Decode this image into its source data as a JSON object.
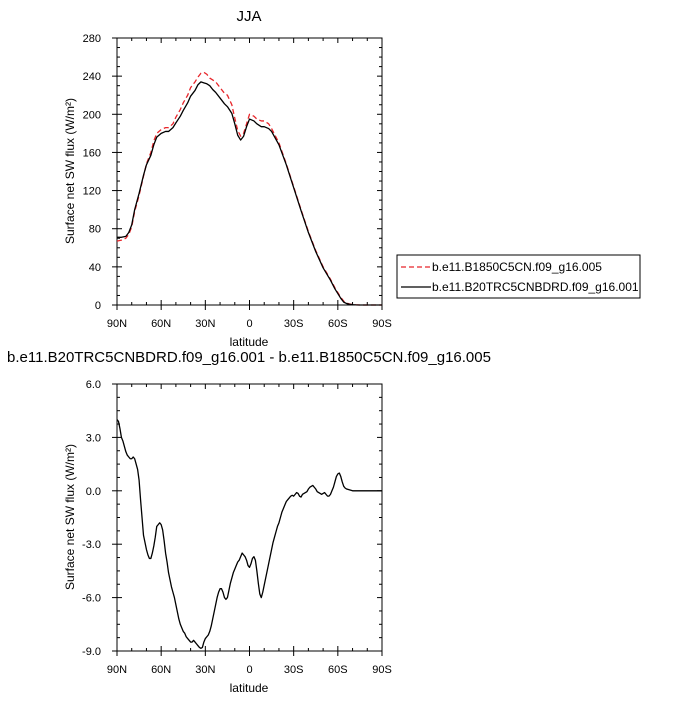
{
  "chart_data": [
    {
      "type": "line",
      "title": "JJA",
      "xlabel": "latitude",
      "ylabel": "Surface net SW flux (W/m²)",
      "xlim": [
        90,
        -90
      ],
      "ylim": [
        0,
        280
      ],
      "xtick_values": [
        90,
        60,
        30,
        0,
        -30,
        -60,
        -90
      ],
      "xtick_labels": [
        "90N",
        "60N",
        "30N",
        "0",
        "30S",
        "60S",
        "90S"
      ],
      "ytick_values": [
        0,
        40,
        80,
        120,
        160,
        200,
        240,
        280
      ],
      "ytick_labels": [
        "0",
        "40",
        "80",
        "120",
        "160",
        "200",
        "240",
        "280"
      ],
      "grid": false,
      "legend": {
        "position": "outside-right",
        "entries": [
          "b.e11.B1850C5CN.f09_g16.005",
          "b.e11.B20TRC5CNBDRD.f09_g16.001"
        ]
      },
      "series": [
        {
          "name": "b.e11.B1850C5CN.f09_g16.005",
          "color": "#e8252a",
          "dash": "dashed",
          "x": [
            90,
            87,
            84,
            82,
            80,
            78,
            75,
            72,
            70,
            67,
            65,
            63,
            60,
            57,
            55,
            52,
            50,
            47,
            45,
            42,
            40,
            37,
            35,
            33,
            31,
            29,
            27,
            25,
            23,
            20,
            17,
            15,
            12,
            10,
            8,
            6,
            4,
            2,
            0,
            -3,
            -5,
            -8,
            -10,
            -13,
            -15,
            -20,
            -25,
            -30,
            -35,
            -40,
            -45,
            -50,
            -55,
            -58,
            -60,
            -62,
            -64,
            -66,
            -68,
            -70,
            -72,
            -75,
            -80,
            -85,
            -90
          ],
          "y": [
            67,
            68,
            70,
            74,
            82,
            98,
            115,
            135,
            148,
            160,
            172,
            180,
            184,
            186,
            186,
            190,
            197,
            205,
            212,
            220,
            228,
            234,
            239,
            243,
            244,
            242,
            238,
            236,
            234,
            228,
            222,
            220,
            210,
            196,
            183,
            177,
            180,
            190,
            200,
            198,
            195,
            193,
            193,
            190,
            185,
            170,
            148,
            124,
            100,
            77,
            57,
            40,
            27,
            18,
            13,
            8,
            4,
            2,
            1,
            0.5,
            0.2,
            0,
            0,
            0,
            0
          ]
        },
        {
          "name": "b.e11.B20TRC5CNBDRD.f09_g16.001",
          "color": "#000000",
          "dash": "solid",
          "x": [
            90,
            87,
            84,
            82,
            80,
            78,
            75,
            72,
            70,
            67,
            65,
            63,
            60,
            57,
            55,
            52,
            50,
            47,
            45,
            42,
            40,
            37,
            35,
            33,
            31,
            29,
            27,
            25,
            23,
            20,
            17,
            15,
            12,
            10,
            8,
            6,
            4,
            2,
            0,
            -3,
            -5,
            -8,
            -10,
            -13,
            -15,
            -20,
            -25,
            -30,
            -35,
            -40,
            -45,
            -50,
            -55,
            -58,
            -60,
            -62,
            -64,
            -66,
            -68,
            -70,
            -72,
            -75,
            -80,
            -85,
            -90
          ],
          "y": [
            71,
            71,
            72,
            76,
            84,
            100,
            117,
            136,
            147,
            157,
            168,
            176,
            180,
            182,
            182,
            186,
            191,
            198,
            204,
            212,
            219,
            225,
            231,
            234,
            233,
            232,
            230,
            226,
            223,
            217,
            211,
            208,
            201,
            190,
            178,
            173,
            177,
            187,
            195,
            193,
            190,
            187,
            187,
            185,
            182,
            168,
            147,
            123,
            99,
            76,
            56,
            39,
            26,
            17,
            12,
            7,
            3,
            1.5,
            0.8,
            0.4,
            0.1,
            0,
            0,
            0,
            0
          ]
        }
      ]
    },
    {
      "type": "line",
      "title": "b.e11.B20TRC5CNBDRD.f09_g16.001 - b.e11.B1850C5CN.f09_g16.005",
      "xlabel": "latitude",
      "ylabel": "Surface net SW flux (W/m²)",
      "xlim": [
        90,
        -90
      ],
      "ylim": [
        -9,
        6
      ],
      "xtick_values": [
        90,
        60,
        30,
        0,
        -30,
        -60,
        -90
      ],
      "xtick_labels": [
        "90N",
        "60N",
        "30N",
        "0",
        "30S",
        "60S",
        "90S"
      ],
      "ytick_values": [
        -9,
        -6,
        -3,
        0,
        3,
        6
      ],
      "ytick_labels": [
        "-9.0",
        "-6.0",
        "-3.0",
        "0.0",
        "3.0",
        "6.0"
      ],
      "grid": false,
      "series": [
        {
          "color": "#000000",
          "dash": "solid",
          "x": [
            90,
            89,
            88,
            87,
            86,
            85,
            84,
            83,
            82,
            81,
            80,
            79,
            78,
            77,
            76,
            75,
            74,
            73,
            72,
            71,
            70,
            69,
            68,
            67,
            66,
            65,
            64,
            63,
            62,
            61,
            60,
            59,
            58,
            57,
            56,
            55,
            54,
            53,
            52,
            51,
            50,
            49,
            48,
            47,
            46,
            45,
            44,
            43,
            42,
            41,
            40,
            39,
            38,
            37,
            36,
            35,
            34,
            33,
            32,
            31,
            30,
            29,
            28,
            27,
            26,
            25,
            24,
            23,
            22,
            21,
            20,
            19,
            18,
            17,
            16,
            15,
            14,
            13,
            12,
            11,
            10,
            9,
            8,
            7,
            6,
            5,
            4,
            3,
            2,
            1,
            0,
            -1,
            -2,
            -3,
            -4,
            -5,
            -6,
            -7,
            -8,
            -9,
            -10,
            -11,
            -12,
            -13,
            -14,
            -15,
            -16,
            -17,
            -18,
            -19,
            -20,
            -21,
            -22,
            -23,
            -24,
            -25,
            -26,
            -27,
            -28,
            -29,
            -30,
            -31,
            -32,
            -33,
            -34,
            -35,
            -36,
            -37,
            -38,
            -39,
            -40,
            -41,
            -42,
            -43,
            -44,
            -45,
            -46,
            -47,
            -48,
            -49,
            -50,
            -51,
            -52,
            -53,
            -54,
            -55,
            -56,
            -57,
            -58,
            -59,
            -60,
            -61,
            -62,
            -63,
            -64,
            -65,
            -66,
            -68,
            -70,
            -75,
            -80,
            -85,
            -90
          ],
          "y": [
            4.0,
            3.9,
            3.5,
            3.0,
            2.8,
            2.5,
            2.2,
            2.0,
            1.9,
            1.8,
            1.8,
            1.9,
            1.8,
            1.5,
            1.2,
            0.6,
            -0.5,
            -1.5,
            -2.5,
            -2.9,
            -3.3,
            -3.6,
            -3.8,
            -3.8,
            -3.5,
            -3.1,
            -2.6,
            -2.0,
            -1.9,
            -1.8,
            -1.9,
            -2.2,
            -2.8,
            -3.5,
            -4.0,
            -4.6,
            -5.0,
            -5.4,
            -5.7,
            -6.0,
            -6.4,
            -6.8,
            -7.2,
            -7.5,
            -7.7,
            -7.9,
            -8.0,
            -8.2,
            -8.3,
            -8.4,
            -8.5,
            -8.5,
            -8.4,
            -8.5,
            -8.6,
            -8.7,
            -8.8,
            -8.85,
            -8.8,
            -8.5,
            -8.3,
            -8.2,
            -8.1,
            -7.9,
            -7.6,
            -7.2,
            -6.8,
            -6.4,
            -6.0,
            -5.7,
            -5.5,
            -5.5,
            -5.7,
            -6.0,
            -6.1,
            -6.0,
            -5.6,
            -5.2,
            -4.9,
            -4.6,
            -4.4,
            -4.2,
            -4.0,
            -3.9,
            -3.7,
            -3.5,
            -3.6,
            -3.7,
            -3.9,
            -4.2,
            -4.3,
            -4.1,
            -3.8,
            -3.7,
            -3.9,
            -4.5,
            -5.2,
            -5.8,
            -6.0,
            -5.7,
            -5.3,
            -4.9,
            -4.5,
            -4.1,
            -3.7,
            -3.3,
            -2.9,
            -2.6,
            -2.3,
            -2.0,
            -1.8,
            -1.5,
            -1.2,
            -1.0,
            -0.8,
            -0.6,
            -0.5,
            -0.4,
            -0.3,
            -0.25,
            -0.3,
            -0.2,
            -0.1,
            -0.15,
            -0.3,
            -0.35,
            -0.2,
            -0.15,
            -0.1,
            -0.05,
            0.1,
            0.2,
            0.25,
            0.3,
            0.2,
            0.1,
            -0.05,
            -0.1,
            -0.15,
            -0.2,
            -0.15,
            -0.1,
            -0.2,
            -0.3,
            -0.3,
            -0.2,
            0.0,
            0.2,
            0.5,
            0.8,
            0.95,
            1.0,
            0.8,
            0.5,
            0.25,
            0.15,
            0.1,
            0.05,
            0.0,
            0.0,
            0.0,
            0.0,
            0.0
          ]
        }
      ]
    }
  ]
}
